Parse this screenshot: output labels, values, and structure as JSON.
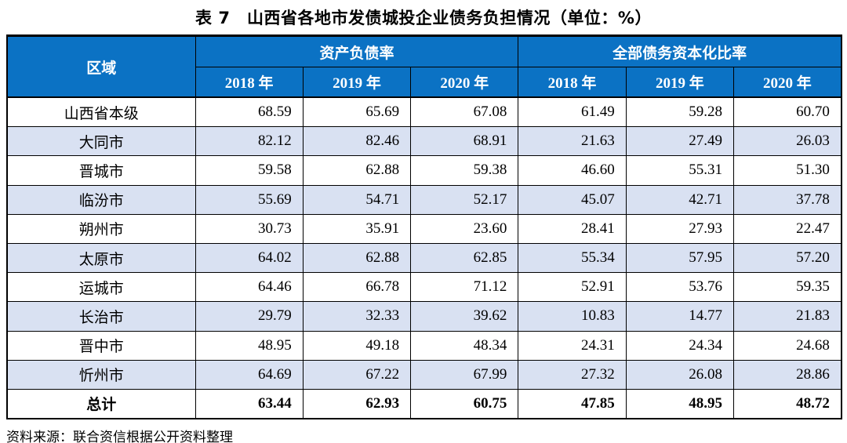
{
  "title": "表 7　山西省各地市发债城投企业债务负担情况（单位：%）",
  "colors": {
    "header_bg": "#0b72c4",
    "header_text": "#ffffff",
    "alt_row_bg": "#d9e1f2",
    "border": "#000000",
    "body_text": "#000000"
  },
  "table": {
    "region_header": "区域",
    "group_headers": [
      "资产负债率",
      "全部债务资本化比率"
    ],
    "year_headers": [
      "2018 年",
      "2019 年",
      "2020 年",
      "2018 年",
      "2019 年",
      "2020 年"
    ],
    "rows": [
      {
        "region": "山西省本级",
        "values": [
          "68.59",
          "65.69",
          "67.08",
          "61.49",
          "59.28",
          "60.70"
        ],
        "alt": false,
        "bold": false
      },
      {
        "region": "大同市",
        "values": [
          "82.12",
          "82.46",
          "68.91",
          "21.63",
          "27.49",
          "26.03"
        ],
        "alt": true,
        "bold": false
      },
      {
        "region": "晋城市",
        "values": [
          "59.58",
          "62.88",
          "59.38",
          "46.60",
          "55.31",
          "51.30"
        ],
        "alt": false,
        "bold": false
      },
      {
        "region": "临汾市",
        "values": [
          "55.69",
          "54.71",
          "52.17",
          "45.07",
          "42.71",
          "37.78"
        ],
        "alt": true,
        "bold": false
      },
      {
        "region": "朔州市",
        "values": [
          "30.73",
          "35.91",
          "23.60",
          "28.41",
          "27.93",
          "22.47"
        ],
        "alt": false,
        "bold": false
      },
      {
        "region": "太原市",
        "values": [
          "64.02",
          "62.88",
          "62.85",
          "55.34",
          "57.95",
          "57.20"
        ],
        "alt": true,
        "bold": false
      },
      {
        "region": "运城市",
        "values": [
          "64.46",
          "66.78",
          "71.12",
          "52.91",
          "53.76",
          "59.35"
        ],
        "alt": false,
        "bold": false
      },
      {
        "region": "长治市",
        "values": [
          "29.79",
          "32.33",
          "39.62",
          "10.83",
          "14.77",
          "21.83"
        ],
        "alt": true,
        "bold": false
      },
      {
        "region": "晋中市",
        "values": [
          "48.95",
          "49.18",
          "48.34",
          "24.31",
          "24.34",
          "24.68"
        ],
        "alt": false,
        "bold": false
      },
      {
        "region": "忻州市",
        "values": [
          "64.69",
          "67.22",
          "67.99",
          "27.32",
          "26.08",
          "28.86"
        ],
        "alt": true,
        "bold": false
      },
      {
        "region": "总计",
        "values": [
          "63.44",
          "62.93",
          "60.75",
          "47.85",
          "48.95",
          "48.72"
        ],
        "alt": false,
        "bold": true
      }
    ]
  },
  "footer": "资料来源：联合资信根据公开资料整理"
}
